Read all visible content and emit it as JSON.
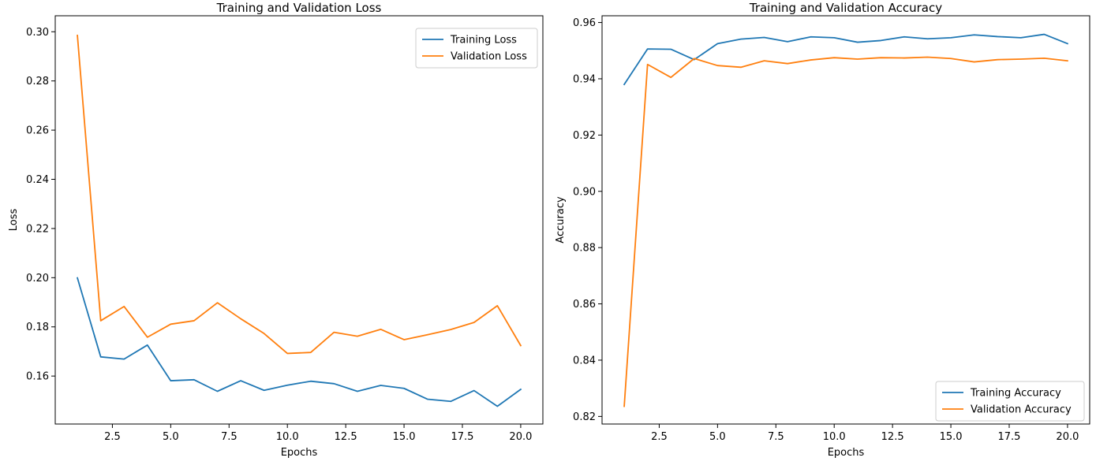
{
  "chart_data": [
    {
      "type": "line",
      "title": "Training and Validation Loss",
      "xlabel": "Epochs",
      "ylabel": "Loss",
      "xlim": [
        0.05,
        20.95
      ],
      "ylim": [
        0.1405,
        0.3065
      ],
      "xticks": [
        2.5,
        5.0,
        7.5,
        10.0,
        12.5,
        15.0,
        17.5,
        20.0
      ],
      "xtick_labels": [
        "2.5",
        "5.0",
        "7.5",
        "10.0",
        "12.5",
        "15.0",
        "17.5",
        "20.0"
      ],
      "yticks": [
        0.16,
        0.18,
        0.2,
        0.22,
        0.24,
        0.26,
        0.28,
        0.3
      ],
      "ytick_labels": [
        "0.16",
        "0.18",
        "0.20",
        "0.22",
        "0.24",
        "0.26",
        "0.28",
        "0.30"
      ],
      "legend_position": "top-right",
      "grid": false,
      "x": [
        1,
        2,
        3,
        4,
        5,
        6,
        7,
        8,
        9,
        10,
        11,
        12,
        13,
        14,
        15,
        16,
        17,
        18,
        19,
        20
      ],
      "series": [
        {
          "name": "Training Loss",
          "color": "#1f77b4",
          "values": [
            0.1999,
            0.1678,
            0.1669,
            0.1726,
            0.1581,
            0.1585,
            0.1538,
            0.1581,
            0.1542,
            0.1563,
            0.1579,
            0.1569,
            0.1538,
            0.1562,
            0.155,
            0.1506,
            0.1497,
            0.1541,
            0.1477,
            0.1546
          ]
        },
        {
          "name": "Validation Loss",
          "color": "#ff7f0e",
          "values": [
            0.2985,
            0.1825,
            0.1883,
            0.1758,
            0.1811,
            0.1825,
            0.1898,
            0.1833,
            0.1773,
            0.1692,
            0.1696,
            0.1778,
            0.1762,
            0.179,
            0.1748,
            0.1768,
            0.1789,
            0.1818,
            0.1886,
            0.1724
          ]
        }
      ]
    },
    {
      "type": "line",
      "title": "Training and Validation Accuracy",
      "xlabel": "Epochs",
      "ylabel": "Accuracy",
      "xlim": [
        0.05,
        20.95
      ],
      "ylim": [
        0.8173,
        0.9624
      ],
      "xticks": [
        2.5,
        5.0,
        7.5,
        10.0,
        12.5,
        15.0,
        17.5,
        20.0
      ],
      "xtick_labels": [
        "2.5",
        "5.0",
        "7.5",
        "10.0",
        "12.5",
        "15.0",
        "17.5",
        "20.0"
      ],
      "yticks": [
        0.82,
        0.84,
        0.86,
        0.88,
        0.9,
        0.92,
        0.94,
        0.96
      ],
      "ytick_labels": [
        "0.82",
        "0.84",
        "0.86",
        "0.88",
        "0.90",
        "0.92",
        "0.94",
        "0.96"
      ],
      "legend_position": "bottom-right",
      "grid": false,
      "x": [
        1,
        2,
        3,
        4,
        5,
        6,
        7,
        8,
        9,
        10,
        11,
        12,
        13,
        14,
        15,
        16,
        17,
        18,
        19,
        20
      ],
      "series": [
        {
          "name": "Training Accuracy",
          "color": "#1f77b4",
          "values": [
            0.938,
            0.9506,
            0.9505,
            0.9468,
            0.9525,
            0.9541,
            0.9547,
            0.9532,
            0.9549,
            0.9546,
            0.953,
            0.9536,
            0.9549,
            0.9542,
            0.9546,
            0.9556,
            0.955,
            0.9546,
            0.9558,
            0.9525
          ]
        },
        {
          "name": "Validation Accuracy",
          "color": "#ff7f0e",
          "values": [
            0.8236,
            0.9451,
            0.9405,
            0.9472,
            0.9447,
            0.9441,
            0.9464,
            0.9454,
            0.9467,
            0.9475,
            0.947,
            0.9475,
            0.9474,
            0.9477,
            0.9472,
            0.946,
            0.9468,
            0.947,
            0.9473,
            0.9464
          ]
        }
      ]
    }
  ]
}
